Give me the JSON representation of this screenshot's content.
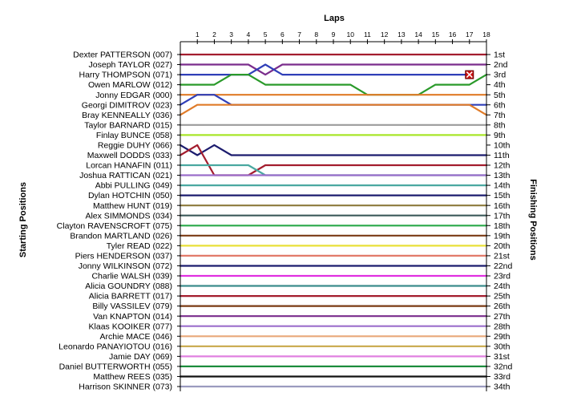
{
  "chart_data": {
    "type": "line",
    "chart_kind": "lap-position chart",
    "title": "",
    "xlabel": "Laps",
    "ylabel_left": "Starting Positions",
    "ylabel_right": "Finishing Positions",
    "laps": [
      1,
      2,
      3,
      4,
      5,
      6,
      7,
      8,
      9,
      10,
      11,
      12,
      13,
      14,
      15,
      16,
      17,
      18
    ],
    "xlim": [
      0,
      18
    ],
    "grid": false,
    "finishing_position_labels": [
      "1st",
      "2nd",
      "3rd",
      "4th",
      "5th",
      "6th",
      "7th",
      "8th",
      "9th",
      "10th",
      "11th",
      "12th",
      "13th",
      "14th",
      "15th",
      "16th",
      "17th",
      "18th",
      "19th",
      "20th",
      "21st",
      "22nd",
      "23rd",
      "24th",
      "25th",
      "26th",
      "27th",
      "28th",
      "29th",
      "30th",
      "31st",
      "32nd",
      "33rd",
      "34th"
    ],
    "retirement_marker": {
      "driver": "Harry THOMPSON (071)",
      "lap": 17,
      "position": 3,
      "color": "#cc1111"
    },
    "series": [
      {
        "name": "Dexter PATTERSON (007)",
        "color": "#a31d2e",
        "positions": [
          1,
          1,
          1,
          1,
          1,
          1,
          1,
          1,
          1,
          1,
          1,
          1,
          1,
          1,
          1,
          1,
          1,
          1,
          1
        ]
      },
      {
        "name": "Joseph TAYLOR (027)",
        "color": "#7a2c8c",
        "positions": [
          2,
          2,
          2,
          2,
          2,
          3,
          2,
          2,
          2,
          2,
          2,
          2,
          2,
          2,
          2,
          2,
          2,
          2,
          2
        ]
      },
      {
        "name": "Harry THOMPSON (071)",
        "color": "#2f3fb8",
        "positions": [
          3,
          3,
          3,
          3,
          3,
          2,
          3,
          3,
          3,
          3,
          3,
          3,
          3,
          3,
          3,
          3,
          3,
          3
        ]
      },
      {
        "name": "Owen MARLOW (012)",
        "color": "#2a9a2a",
        "positions": [
          4,
          4,
          4,
          3,
          3,
          4,
          4,
          4,
          4,
          4,
          4,
          5,
          5,
          5,
          5,
          4,
          4,
          4,
          3
        ]
      },
      {
        "name": "Jonny EDGAR (000)",
        "color": "#e07b28",
        "positions": [
          5,
          5,
          5,
          5,
          5,
          5,
          5,
          5,
          5,
          5,
          5,
          5,
          5,
          5,
          5,
          5,
          5,
          5,
          5
        ]
      },
      {
        "name": "Georgi DIMITROV (023)",
        "color": "#2f3fb8",
        "positions": [
          6,
          5,
          5,
          6,
          6,
          6,
          6,
          6,
          6,
          6,
          6,
          6,
          6,
          6,
          6,
          6,
          6,
          6,
          6
        ]
      },
      {
        "name": "Bray KENNEALLY (036)",
        "color": "#e07b28",
        "positions": [
          7,
          6,
          6,
          6,
          6,
          6,
          6,
          6,
          6,
          6,
          6,
          6,
          6,
          6,
          6,
          6,
          6,
          6,
          7
        ]
      },
      {
        "name": "Taylor BARNARD (015)",
        "color": "#9b9b9b",
        "positions": [
          8,
          8,
          8,
          8,
          8,
          8,
          8,
          8,
          8,
          8,
          8,
          8,
          8,
          8,
          8,
          8,
          8,
          8,
          8
        ]
      },
      {
        "name": "Finlay BUNCE (058)",
        "color": "#a8e62a",
        "positions": [
          9,
          9,
          9,
          9,
          9,
          9,
          9,
          9,
          9,
          9,
          9,
          9,
          9,
          9,
          9,
          9,
          9,
          9,
          9
        ]
      },
      {
        "name": "Reggie DUHY (066)",
        "color": "#1c1c6e",
        "positions": [
          10,
          11,
          10,
          11,
          11,
          11,
          11,
          11,
          11,
          11,
          11,
          11,
          11,
          11,
          11,
          11,
          11,
          11,
          11
        ]
      },
      {
        "name": "Maxwell DODDS (033)",
        "color": "#a31d2e",
        "positions": [
          11,
          10,
          13,
          13,
          13,
          12,
          12,
          12,
          12,
          12,
          12,
          12,
          12,
          12,
          12,
          12,
          12,
          12,
          12
        ]
      },
      {
        "name": "Lorcan HANAFIN (011)",
        "color": "#4aa8a0",
        "positions": [
          12,
          12,
          12,
          12,
          12,
          13,
          13,
          13,
          13,
          13,
          13,
          13,
          13,
          13,
          13,
          13,
          13,
          13,
          13
        ]
      },
      {
        "name": "Joshua RATTICAN (021)",
        "color": "#9b6ecb",
        "positions": [
          13,
          13,
          13,
          13,
          13,
          13,
          13,
          13,
          13,
          13,
          13,
          13,
          13,
          13,
          13,
          13,
          13,
          13,
          13
        ]
      },
      {
        "name": "Abbi PULLING (049)",
        "color": "#4aa8a0",
        "positions": [
          14,
          14,
          14,
          14,
          14,
          14,
          14,
          14,
          14,
          14,
          14,
          14,
          14,
          14,
          14,
          14,
          14,
          14,
          14
        ]
      },
      {
        "name": "Dylan HOTCHIN (050)",
        "color": "#1c1c6e",
        "positions": [
          15,
          15,
          15,
          15,
          15,
          15,
          15,
          15,
          15,
          15,
          15,
          15,
          15,
          15,
          15,
          15,
          15,
          15,
          15
        ]
      },
      {
        "name": "Matthew HUNT (019)",
        "color": "#8c7a3c",
        "positions": [
          16,
          16,
          16,
          16,
          16,
          16,
          16,
          16,
          16,
          16,
          16,
          16,
          16,
          16,
          16,
          16,
          16,
          16,
          16
        ]
      },
      {
        "name": "Alex SIMMONDS (034)",
        "color": "#3c5a5a",
        "positions": [
          17,
          17,
          17,
          17,
          17,
          17,
          17,
          17,
          17,
          17,
          17,
          17,
          17,
          17,
          17,
          17,
          17,
          17,
          17
        ]
      },
      {
        "name": "Clayton RAVENSCROFT (075)",
        "color": "#2aa84a",
        "positions": [
          18,
          18,
          18,
          18,
          18,
          18,
          18,
          18,
          18,
          18,
          18,
          18,
          18,
          18,
          18,
          18,
          18,
          18,
          18
        ]
      },
      {
        "name": "Brandon MARTLAND (026)",
        "color": "#7a3a14",
        "positions": [
          19,
          19,
          19,
          19,
          19,
          19,
          19,
          19,
          19,
          19,
          19,
          19,
          19,
          19,
          19,
          19,
          19,
          19,
          19
        ]
      },
      {
        "name": "Tyler READ (022)",
        "color": "#e8e03a",
        "positions": [
          20,
          20,
          20,
          20,
          20,
          20,
          20,
          20,
          20,
          20,
          20,
          20,
          20,
          20,
          20,
          20,
          20,
          20,
          20
        ]
      },
      {
        "name": "Piers HENDERSON (037)",
        "color": "#e27a6a",
        "positions": [
          21,
          21,
          21,
          21,
          21,
          21,
          21,
          21,
          21,
          21,
          21,
          21,
          21,
          21,
          21,
          21,
          21,
          21,
          21
        ]
      },
      {
        "name": "Jonny WILKINSON (072)",
        "color": "#1c1c6e",
        "positions": [
          22,
          22,
          22,
          22,
          22,
          22,
          22,
          22,
          22,
          22,
          22,
          22,
          22,
          22,
          22,
          22,
          22,
          22,
          22
        ]
      },
      {
        "name": "Charlie WALSH (039)",
        "color": "#e030e0",
        "positions": [
          23,
          23,
          23,
          23,
          23,
          23,
          23,
          23,
          23,
          23,
          23,
          23,
          23,
          23,
          23,
          23,
          23,
          23,
          23
        ]
      },
      {
        "name": "Alicia GOUNDRY (088)",
        "color": "#3c8c8c",
        "positions": [
          24,
          24,
          24,
          24,
          24,
          24,
          24,
          24,
          24,
          24,
          24,
          24,
          24,
          24,
          24,
          24,
          24,
          24,
          24
        ]
      },
      {
        "name": "Alicia BARRETT (017)",
        "color": "#a31d2e",
        "positions": [
          25,
          25,
          25,
          25,
          25,
          25,
          25,
          25,
          25,
          25,
          25,
          25,
          25,
          25,
          25,
          25,
          25,
          25,
          25
        ]
      },
      {
        "name": "Billy VASSILEV (079)",
        "color": "#7a3a14",
        "positions": [
          26,
          26,
          26,
          26,
          26,
          26,
          26,
          26,
          26,
          26,
          26,
          26,
          26,
          26,
          26,
          26,
          26,
          26,
          26
        ]
      },
      {
        "name": "Van KNAPTON (014)",
        "color": "#7a2c8c",
        "positions": [
          27,
          27,
          27,
          27,
          27,
          27,
          27,
          27,
          27,
          27,
          27,
          27,
          27,
          27,
          27,
          27,
          27,
          27,
          27
        ]
      },
      {
        "name": "Klaas KOOIKER (077)",
        "color": "#9b6ecb",
        "positions": [
          28,
          28,
          28,
          28,
          28,
          28,
          28,
          28,
          28,
          28,
          28,
          28,
          28,
          28,
          28,
          28,
          28,
          28,
          28
        ]
      },
      {
        "name": "Archie MACE (046)",
        "color": "#e8a87a",
        "positions": [
          29,
          29,
          29,
          29,
          29,
          29,
          29,
          29,
          29,
          29,
          29,
          29,
          29,
          29,
          29,
          29,
          29,
          29,
          29
        ]
      },
      {
        "name": "Leonardo PANAYIOTOU (016)",
        "color": "#c8a84a",
        "positions": [
          30,
          30,
          30,
          30,
          30,
          30,
          30,
          30,
          30,
          30,
          30,
          30,
          30,
          30,
          30,
          30,
          30,
          30,
          30
        ]
      },
      {
        "name": "Jamie DAY (069)",
        "color": "#e080e0",
        "positions": [
          31,
          31,
          31,
          31,
          31,
          31,
          31,
          31,
          31,
          31,
          31,
          31,
          31,
          31,
          31,
          31,
          31,
          31,
          31
        ]
      },
      {
        "name": "Daniel BUTTERWORTH (055)",
        "color": "#1c8c3c",
        "positions": [
          32,
          32,
          32,
          32,
          32,
          32,
          32,
          32,
          32,
          32,
          32,
          32,
          32,
          32,
          32,
          32,
          32,
          32,
          32
        ]
      },
      {
        "name": "Matthew REES (035)",
        "color": "#111111",
        "positions": [
          33,
          33,
          33,
          33,
          33,
          33,
          33,
          33,
          33,
          33,
          33,
          33,
          33,
          33,
          33,
          33,
          33,
          33,
          33
        ]
      },
      {
        "name": "Harrison SKINNER (073)",
        "color": "#9b9bbf",
        "positions": [
          34,
          34,
          34,
          34,
          34,
          34,
          34,
          34,
          34,
          34,
          34,
          34,
          34,
          34,
          34,
          34,
          34,
          34,
          34
        ]
      }
    ]
  }
}
